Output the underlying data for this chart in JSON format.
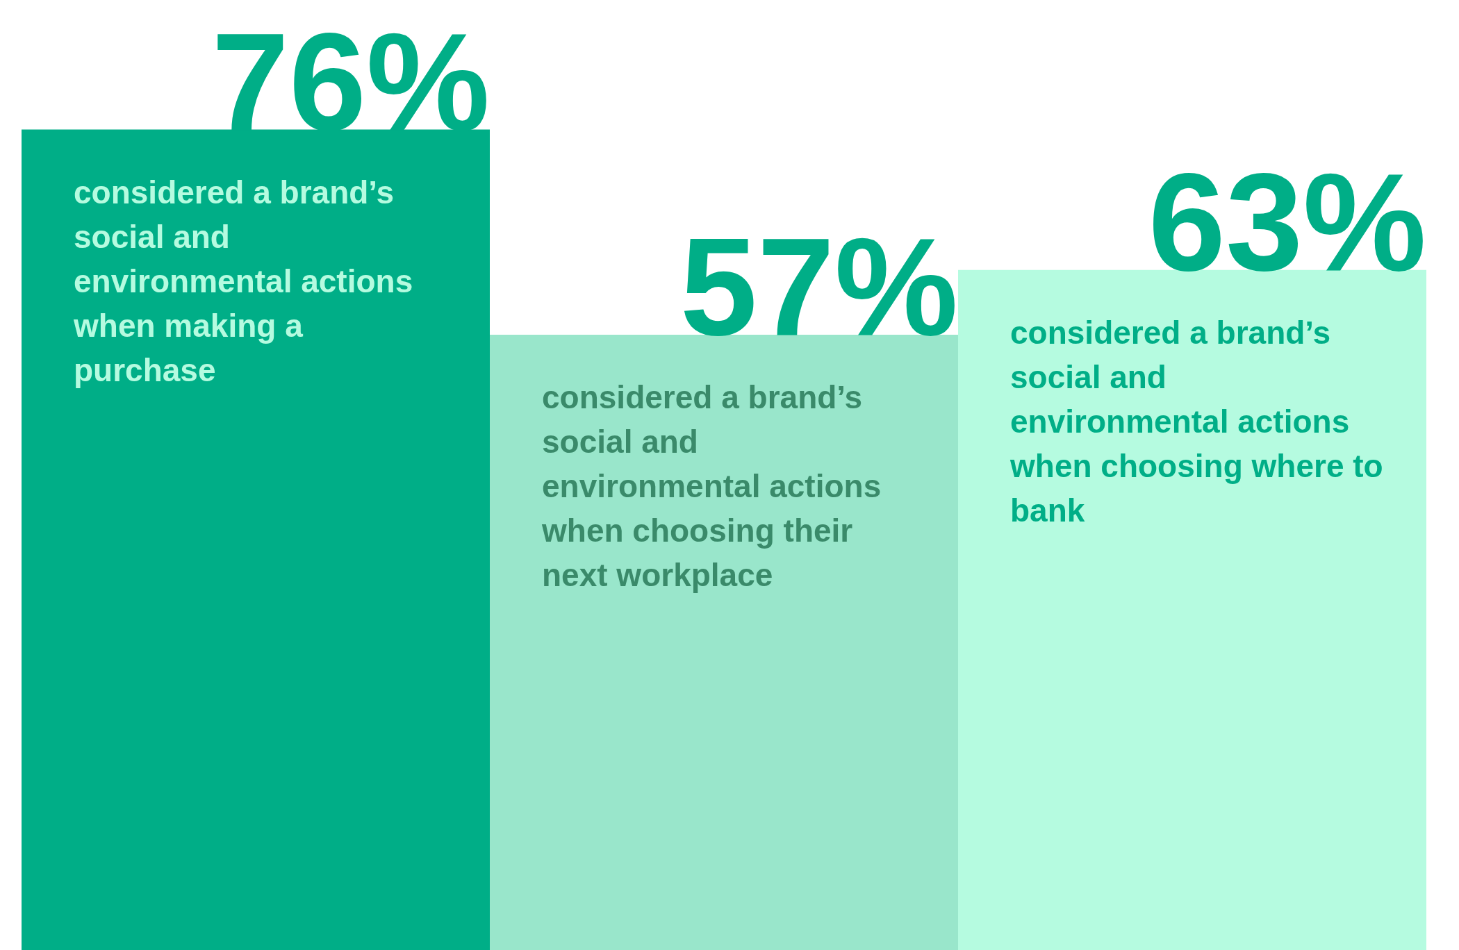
{
  "chart_data": {
    "type": "bar",
    "categories": [
      "considered a brand’s social and environmental actions when making a purchase",
      "considered a brand’s social and environmental actions when choosing their next workplace",
      "considered a brand’s social and environmental actions when choosing where to bank"
    ],
    "values": [
      76,
      57,
      63
    ],
    "value_labels": [
      "76%",
      "57%",
      "63%"
    ],
    "colors": [
      "#00ae87",
      "#99e6cb",
      "#b5fbe0"
    ],
    "ylim": [
      0,
      88
    ],
    "tick_labels": false
  }
}
